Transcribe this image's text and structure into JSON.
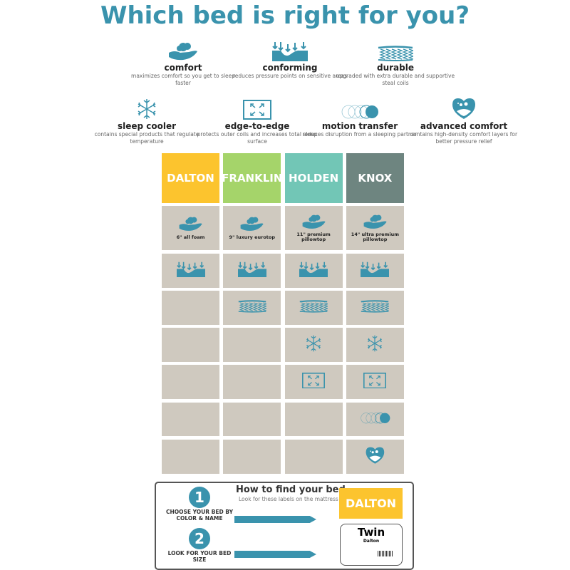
{
  "title": "Which bed is right for you?",
  "accent": "#3a93ad",
  "features": [
    {
      "icon": "comfort-hand-icon",
      "name": "comfort",
      "desc": "maximizes comfort so you get to sleep faster"
    },
    {
      "icon": "conforming-icon",
      "name": "conforming",
      "desc": "reduces pressure points on sensitive areas"
    },
    {
      "icon": "coils-icon",
      "name": "durable",
      "desc": "upgraded with extra durable and supportive steal coils"
    },
    {
      "icon": "snowflake-icon",
      "name": "sleep cooler",
      "desc": "contains special products that regulate temperature"
    },
    {
      "icon": "expand-icon",
      "name": "edge-to-edge",
      "desc": "protects outer coils and increases total sleep surface"
    },
    {
      "icon": "motion-circles-icon",
      "name": "motion transfer",
      "desc": "reduces disruption from a sleeping partner"
    },
    {
      "icon": "heart-icon",
      "name": "advanced comfort",
      "desc": "contains high-density comfort layers for better pressure relief"
    }
  ],
  "beds": [
    {
      "name": "DALTON",
      "color": "#fcc42e",
      "features": [
        true,
        true,
        false,
        false,
        false,
        false,
        false
      ],
      "comfort_label": "6\" all foam"
    },
    {
      "name": "FRANKLIN",
      "color": "#a5d46a",
      "features": [
        true,
        true,
        true,
        false,
        false,
        false,
        false
      ],
      "comfort_label": "9\" luxury eurotop"
    },
    {
      "name": "HOLDEN",
      "color": "#72c6b6",
      "features": [
        true,
        true,
        true,
        true,
        true,
        false,
        false
      ],
      "comfort_label": "11\" premium pillowtop"
    },
    {
      "name": "KNOX",
      "color": "#6e8580",
      "features": [
        true,
        true,
        true,
        true,
        true,
        true,
        true
      ],
      "comfort_label": "14\" ultra premium pillowtop"
    }
  ],
  "howto": {
    "title": "How to find your bed",
    "subtitle": "Look for these labels on the mattress",
    "step1_num": "1",
    "step1": "CHOOSE YOUR BED BY COLOR & NAME",
    "step2_num": "2",
    "step2": "LOOK FOR YOUR BED SIZE",
    "label_name": "DALTON",
    "size": "Twin",
    "size_sub": "Dalton"
  }
}
